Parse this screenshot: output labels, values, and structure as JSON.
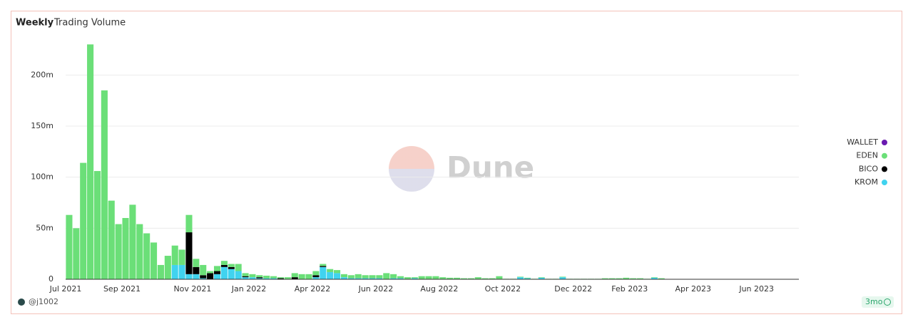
{
  "chart_data": {
    "type": "bar",
    "stacked": true,
    "tab": "Weekly",
    "title": "Trading Volume",
    "watermark": "Dune",
    "author": "@j1002",
    "age": "3mo",
    "categories": [
      "Jul 2021",
      null,
      null,
      null,
      null,
      null,
      null,
      null,
      "Sep 2021",
      null,
      null,
      null,
      null,
      null,
      null,
      null,
      null,
      null,
      "Nov 2021",
      null,
      null,
      null,
      null,
      null,
      null,
      null,
      "Jan 2022",
      null,
      null,
      null,
      null,
      null,
      null,
      null,
      null,
      "Apr 2022",
      null,
      null,
      null,
      null,
      null,
      null,
      null,
      null,
      "Jun 2022",
      null,
      null,
      null,
      null,
      null,
      null,
      null,
      null,
      "Aug 2022",
      null,
      null,
      null,
      null,
      null,
      null,
      null,
      null,
      "Oct 2022",
      null,
      null,
      null,
      null,
      null,
      null,
      null,
      null,
      null,
      "Dec 2022",
      null,
      null,
      null,
      null,
      null,
      null,
      null,
      "Feb 2023",
      null,
      null,
      null,
      null,
      null,
      null,
      null,
      null,
      "Apr 2023",
      null,
      null,
      null,
      null,
      null,
      null,
      null,
      null,
      "Jun 2023",
      null,
      null,
      null,
      null,
      null
    ],
    "series": [
      {
        "name": "WALLET",
        "color": "#6a1ab0",
        "values": [
          0,
          0,
          0,
          0,
          0,
          0,
          0,
          0,
          0,
          0,
          0,
          0,
          0,
          0,
          0,
          0,
          0,
          0,
          0,
          0,
          0,
          0,
          0,
          0,
          0,
          0,
          0,
          0,
          0,
          0,
          0,
          0,
          0,
          0,
          0,
          0,
          0,
          0,
          0,
          0,
          0,
          0,
          0,
          0,
          0,
          0,
          0,
          0,
          0,
          0,
          0,
          0,
          0,
          0,
          0,
          0,
          0,
          0,
          0,
          0,
          0,
          0,
          0,
          0,
          0,
          0,
          0,
          0,
          0,
          0,
          0,
          0,
          0,
          0,
          0,
          0,
          0,
          0,
          0,
          0,
          0,
          0,
          0,
          0,
          0,
          0,
          0,
          0,
          0,
          0,
          0,
          0,
          0,
          0,
          0,
          0,
          0,
          0,
          0,
          0,
          0,
          0,
          0,
          0
        ]
      },
      {
        "name": "EDEN",
        "color": "#6bdf78",
        "values": [
          63,
          50,
          114,
          230,
          106,
          185,
          77,
          54,
          60,
          73,
          54,
          45,
          36,
          14,
          23,
          19,
          15,
          17,
          8,
          10,
          2,
          5,
          4,
          3,
          7,
          3,
          3,
          2,
          2.5,
          2,
          1,
          2,
          4,
          5,
          5,
          4,
          2,
          3,
          3,
          3,
          3,
          4,
          3,
          3,
          3,
          6,
          4,
          2,
          2,
          1,
          3,
          3,
          3,
          2,
          1.5,
          1.5,
          1,
          1,
          2,
          1,
          1,
          3,
          0.5,
          0.5,
          0.5,
          0.5,
          0.5,
          0.5,
          0.5,
          0.5,
          0.5,
          0.5,
          0.5,
          0.5,
          0.5,
          0.5,
          1,
          1,
          1,
          1.5,
          1,
          1,
          0.5,
          0.5,
          1,
          0.3,
          0.3,
          0.3,
          0.3,
          0.3,
          0.3,
          0.3,
          0.3,
          0.3,
          0.3,
          0.3,
          0.3,
          0.3,
          0.3,
          0.3,
          0.3,
          0.3,
          0.3,
          0.3
        ]
      },
      {
        "name": "BICO",
        "color": "#000000",
        "values": [
          0,
          0,
          0,
          0,
          0,
          0,
          0,
          0,
          0,
          0,
          0,
          0,
          0,
          0,
          0,
          0,
          0,
          41,
          7,
          3,
          6,
          3,
          2,
          2,
          0,
          1,
          0,
          1,
          0,
          0,
          1,
          0,
          2,
          0,
          0,
          2,
          1,
          0,
          0,
          0,
          0,
          0,
          0,
          0,
          0,
          0,
          0,
          0,
          0,
          0,
          0,
          0,
          0,
          0,
          0,
          0,
          0,
          0,
          0,
          0,
          0,
          0,
          0,
          0,
          0,
          0,
          0,
          0,
          0,
          0,
          0,
          0,
          0,
          0,
          0,
          0,
          0,
          0,
          0,
          0,
          0,
          0,
          0,
          0,
          0,
          0,
          0,
          0,
          0,
          0,
          0,
          0,
          0,
          0,
          0,
          0,
          0,
          0,
          0,
          0,
          0,
          0,
          0,
          0
        ]
      },
      {
        "name": "KROM",
        "color": "#40d3ef",
        "values": [
          0,
          0,
          0,
          0,
          0,
          0,
          0,
          0,
          0,
          0,
          0,
          0,
          0,
          0,
          0,
          14,
          14,
          5,
          5,
          1,
          0,
          5,
          12,
          10,
          8,
          2,
          2,
          1,
          1,
          1,
          0,
          0,
          0,
          0,
          0,
          2,
          12,
          7,
          6,
          2,
          1,
          1,
          1,
          1,
          1,
          0,
          1,
          1,
          0,
          1,
          0,
          0,
          0,
          0,
          0,
          0,
          0,
          0,
          0,
          0,
          0,
          0,
          0,
          0,
          2,
          1,
          0,
          1.5,
          0,
          0,
          2,
          0,
          0,
          0,
          0,
          0,
          0,
          0,
          0,
          0,
          0,
          0,
          0,
          1.5,
          0,
          0,
          0,
          0,
          0,
          0,
          0,
          0,
          0,
          0,
          0,
          0,
          0,
          0,
          0,
          0,
          0,
          0,
          0,
          0
        ]
      }
    ],
    "ylim": [
      0,
      240
    ],
    "yticks": [
      0,
      {
        "value": 50,
        "label": "50m"
      },
      {
        "value": 100,
        "label": "100m"
      },
      {
        "value": 150,
        "label": "150m"
      },
      {
        "value": 200,
        "label": "200m"
      }
    ],
    "grid": true,
    "legend": "right"
  }
}
